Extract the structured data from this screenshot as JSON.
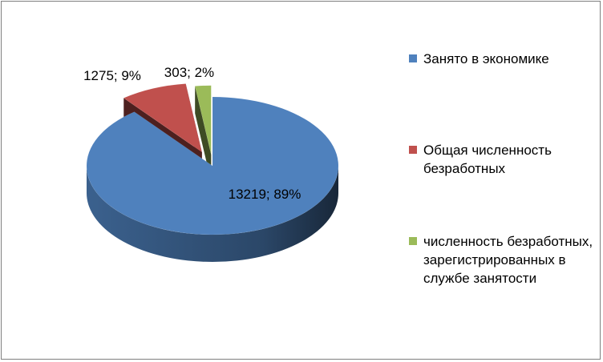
{
  "chart_data": {
    "type": "pie",
    "three_d": true,
    "exploded": true,
    "legend_position": "right",
    "series": [
      {
        "name": "",
        "categories": [
          "Занято в экономике",
          "Общая численность безработных",
          "численность безработных, зарегистрированных в службе занятости"
        ],
        "values": [
          13219,
          1275,
          303
        ],
        "percent_labels": [
          "89%",
          "9%",
          "2%"
        ],
        "data_labels": [
          "13219; 89%",
          "1275; 9%",
          "303; 2%"
        ],
        "colors": [
          "#4f81bd",
          "#c0504d",
          "#9bbb59"
        ]
      }
    ]
  }
}
